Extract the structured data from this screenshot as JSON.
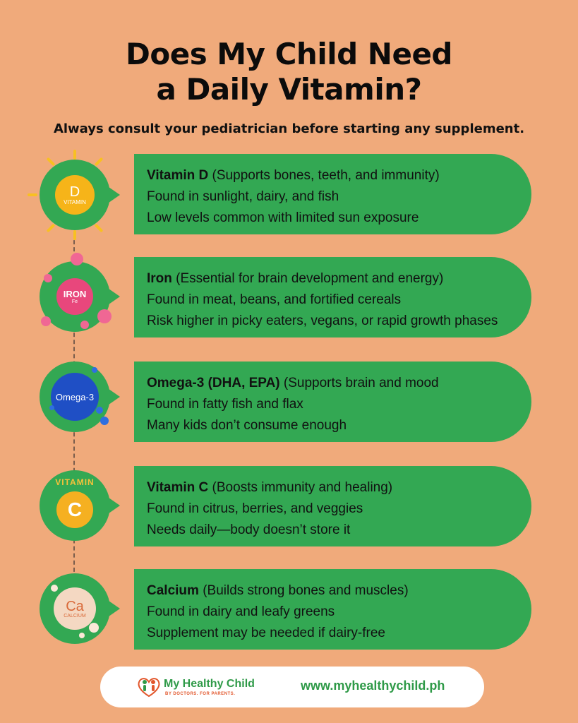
{
  "title": {
    "line1": "Does My Child Need",
    "line2": "a Daily Vitamin?"
  },
  "subtitle": "Always consult your pediatrician before starting any supplement.",
  "items": [
    {
      "badge_icon": "vitamin-d-sun-icon",
      "badge_main": "D",
      "badge_sub": "VITAMIN",
      "name": "Vitamin D",
      "desc": " (Supports bones, teeth, and immunity)",
      "line2": "Found in sunlight, dairy, and fish",
      "line3": "Low levels common with limited sun exposure"
    },
    {
      "badge_icon": "iron-molecule-icon",
      "badge_main": "IRON",
      "badge_sub": "Fe",
      "name": "Iron",
      "desc": "  (Essential for brain development and energy)",
      "line2": "Found in meat, beans, and fortified cereals",
      "line3": "Risk higher in picky eaters, vegans, or rapid growth phases"
    },
    {
      "badge_icon": "omega-3-capsule-icon",
      "badge_main": "Omega-3",
      "name": "Omega-3 (DHA, EPA)",
      "desc": " (Supports brain and mood",
      "line2": "Found in fatty fish and flax",
      "line3": "Many kids don’t consume enough"
    },
    {
      "badge_icon": "vitamin-c-orb-icon",
      "badge_main": "C",
      "badge_sub": "VITAMIN",
      "name": "Vitamin C",
      "desc": " (Boosts immunity and healing)",
      "line2": "Found in citrus, berries, and veggies",
      "line3": "Needs daily—body doesn’t store it"
    },
    {
      "badge_icon": "calcium-pearl-icon",
      "badge_main": "Ca",
      "badge_sub": "CALCIUM",
      "name": "Calcium",
      "desc": " (Builds strong bones and muscles)",
      "line2": "Found in dairy and leafy greens",
      "line3": "Supplement may be needed if dairy-free"
    }
  ],
  "footer": {
    "brand": "My Healthy Child",
    "tagline": "BY DOCTORS. FOR PARENTS.",
    "url": "www.myhealthychild.ph"
  },
  "colors": {
    "background": "#f0aa7b",
    "card_green": "#33a853",
    "brand_green": "#2f9a48",
    "brand_orange": "#e2562b"
  }
}
